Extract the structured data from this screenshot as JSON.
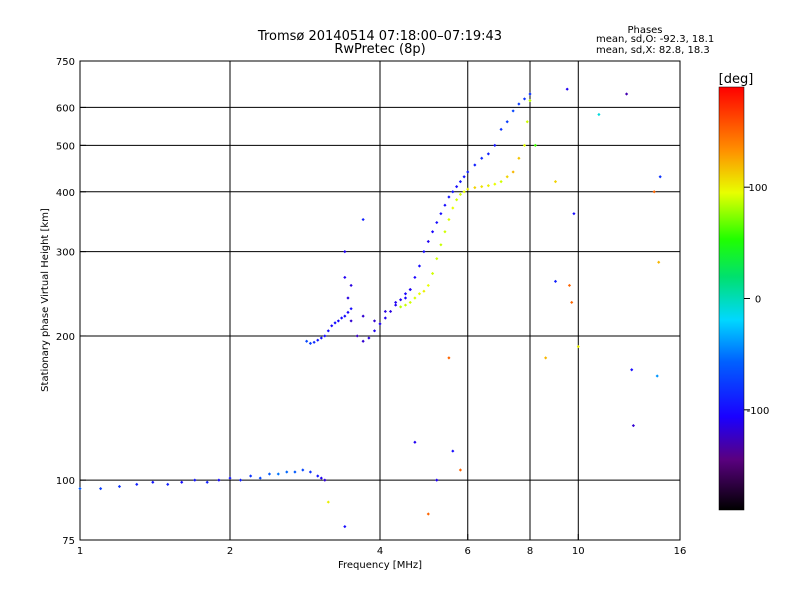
{
  "window": {
    "title_line1": "Tromsø 20140514 07:18:00–07:19:43",
    "title_line2": "RwPretec (8p)"
  },
  "stats": {
    "heading": "Phases",
    "line_o": "mean, sd,O: -92.3, 18.1",
    "line_x": "mean, sd,X:  82.8, 18.3"
  },
  "colorbar": {
    "label": "[deg]",
    "tick_labels": [
      "100",
      "0",
      "-100"
    ],
    "range": [
      -190,
      190
    ]
  },
  "chart_data": {
    "type": "scatter",
    "title": "Tromsø 20140514 07:18:00–07:19:43",
    "subtitle": "RwPretec (8p)",
    "xlabel": "Frequency [MHz]",
    "ylabel": "Stationary phase Virtual Height [km]",
    "x_scale": "log",
    "y_scale": "log",
    "xlim": [
      1,
      16
    ],
    "ylim": [
      75,
      750
    ],
    "x_ticks": [
      1,
      2,
      4,
      6,
      8,
      10,
      16
    ],
    "x_tick_labels": [
      "1",
      "2",
      "4",
      "6",
      "8",
      "10",
      "16"
    ],
    "y_ticks": [
      75,
      100,
      200,
      300,
      400,
      500,
      600,
      750
    ],
    "y_tick_labels": [
      "75",
      "100",
      "200",
      "300",
      "400",
      "500",
      "600",
      "750"
    ],
    "x_gridlines": [
      2,
      4,
      6,
      8,
      10
    ],
    "y_gridlines": [
      100,
      200,
      300,
      400,
      500,
      600
    ],
    "grid": true,
    "color_scale": {
      "label": "[deg]",
      "min": -190,
      "max": 190,
      "ticks": [
        100,
        0,
        -100
      ]
    },
    "series": [
      {
        "traces": [
          {
            "x": [
              1.0,
              1.1,
              1.2,
              1.3,
              1.4,
              1.5,
              1.6,
              1.7,
              1.8,
              1.9,
              2.0,
              2.1,
              2.2,
              2.3,
              2.4,
              2.5,
              2.6,
              2.7,
              2.8,
              2.9,
              3.0,
              3.05,
              3.1
            ],
            "y": [
              96,
              96,
              97,
              98,
              99,
              98,
              99,
              100,
              99,
              100,
              101,
              100,
              102,
              101,
              103,
              103,
              104,
              104,
              105,
              104,
              102,
              101,
              100
            ],
            "phase": [
              -60,
              -75,
              -80,
              -90,
              -95,
              -90,
              -100,
              -95,
              -90,
              -100,
              -95,
              -90,
              -80,
              -70,
              -60,
              -50,
              -55,
              -60,
              -70,
              -80,
              -95,
              -110,
              -120
            ]
          },
          {
            "x": [
              2.85,
              2.9,
              2.95,
              3.0,
              3.05,
              3.1,
              3.15,
              3.2,
              3.25,
              3.3,
              3.35,
              3.4,
              3.45,
              3.5
            ],
            "y": [
              195,
              193,
              194,
              196,
              198,
              200,
              205,
              210,
              213,
              215,
              218,
              220,
              224,
              228
            ],
            "phase": [
              -70,
              -75,
              -85,
              -95,
              -95,
              -100,
              -100,
              -105,
              -100,
              -105,
              -100,
              -100,
              -105,
              -100
            ]
          },
          {
            "x": [
              3.4,
              3.45,
              3.5,
              3.6,
              3.7,
              3.8,
              3.9,
              4.0,
              4.1,
              4.2,
              4.3,
              4.4,
              4.5,
              4.6
            ],
            "y": [
              265,
              240,
              215,
              200,
              195,
              198,
              205,
              212,
              218,
              225,
              232,
              238,
              245,
              250
            ],
            "phase": [
              -110,
              -115,
              -120,
              -125,
              -120,
              -115,
              -110,
              -110,
              -110,
              -115,
              -110,
              -110,
              -105,
              -105
            ]
          },
          {
            "x": [
              3.4,
              3.5,
              3.7,
              3.9,
              4.1,
              4.3,
              4.5,
              4.6,
              4.7,
              4.8,
              4.9,
              5.0,
              5.1,
              5.2,
              5.3,
              5.4,
              5.5,
              5.6,
              5.7,
              5.8,
              5.9,
              6.0,
              6.2,
              6.4,
              6.6,
              6.8,
              7.0,
              7.2,
              7.4,
              7.6,
              7.8,
              8.0
            ],
            "y": [
              300,
              255,
              220,
              215,
              225,
              235,
              240,
              250,
              265,
              280,
              300,
              315,
              330,
              345,
              360,
              375,
              390,
              400,
              410,
              420,
              430,
              440,
              455,
              470,
              480,
              500,
              540,
              560,
              590,
              610,
              625,
              640
            ],
            "phase": [
              -110,
              -115,
              -120,
              -120,
              -115,
              -110,
              -105,
              -110,
              -105,
              -100,
              -100,
              -110,
              -105,
              -100,
              -100,
              -100,
              -95,
              -95,
              -100,
              -95,
              -95,
              -90,
              -90,
              -85,
              -90,
              -95,
              -80,
              -75,
              -70,
              -75,
              -80,
              -80
            ]
          },
          {
            "x": [
              4.4,
              4.5,
              4.6,
              4.7,
              4.8,
              4.9,
              5.0,
              5.1,
              5.2,
              5.3,
              5.4,
              5.5,
              5.6,
              5.7,
              5.8,
              5.9,
              6.0,
              6.2,
              6.4,
              6.6,
              6.8,
              7.0,
              7.2,
              7.4,
              7.6,
              7.8,
              7.9,
              8.0
            ],
            "y": [
              230,
              232,
              235,
              240,
              245,
              248,
              255,
              270,
              290,
              310,
              330,
              350,
              370,
              385,
              395,
              400,
              405,
              408,
              410,
              412,
              415,
              420,
              430,
              440,
              470,
              500,
              560,
              620
            ],
            "phase": [
              85,
              88,
              90,
              92,
              95,
              100,
              95,
              90,
              90,
              88,
              90,
              92,
              95,
              90,
              90,
              95,
              100,
              110,
              105,
              100,
              95,
              90,
              110,
              120,
              115,
              95,
              90,
              85
            ]
          }
        ]
      },
      {
        "points": [
          {
            "x": 3.7,
            "y": 350,
            "phase": -90
          },
          {
            "x": 3.15,
            "y": 90,
            "phase": 100
          },
          {
            "x": 3.4,
            "y": 80,
            "phase": -100
          },
          {
            "x": 4.7,
            "y": 120,
            "phase": -110
          },
          {
            "x": 5.0,
            "y": 85,
            "phase": 150
          },
          {
            "x": 5.5,
            "y": 180,
            "phase": 150
          },
          {
            "x": 5.6,
            "y": 115,
            "phase": -100
          },
          {
            "x": 5.8,
            "y": 105,
            "phase": 150
          },
          {
            "x": 5.2,
            "y": 100,
            "phase": -110
          },
          {
            "x": 8.2,
            "y": 500,
            "phase": 60
          },
          {
            "x": 8.6,
            "y": 180,
            "phase": 120
          },
          {
            "x": 9.0,
            "y": 260,
            "phase": -90
          },
          {
            "x": 9.6,
            "y": 255,
            "phase": 150
          },
          {
            "x": 9.7,
            "y": 235,
            "phase": 150
          },
          {
            "x": 9.8,
            "y": 360,
            "phase": -100
          },
          {
            "x": 10.0,
            "y": 190,
            "phase": 100
          },
          {
            "x": 9.5,
            "y": 655,
            "phase": -110
          },
          {
            "x": 12.5,
            "y": 640,
            "phase": -130
          },
          {
            "x": 11.0,
            "y": 580,
            "phase": -10
          },
          {
            "x": 12.8,
            "y": 170,
            "phase": -100
          },
          {
            "x": 14.6,
            "y": 430,
            "phase": -80
          },
          {
            "x": 14.5,
            "y": 285,
            "phase": 120
          },
          {
            "x": 14.4,
            "y": 165,
            "phase": -40
          },
          {
            "x": 12.9,
            "y": 130,
            "phase": -120
          },
          {
            "x": 14.2,
            "y": 400,
            "phase": 150
          },
          {
            "x": 9.0,
            "y": 420,
            "phase": 110
          }
        ]
      }
    ]
  }
}
